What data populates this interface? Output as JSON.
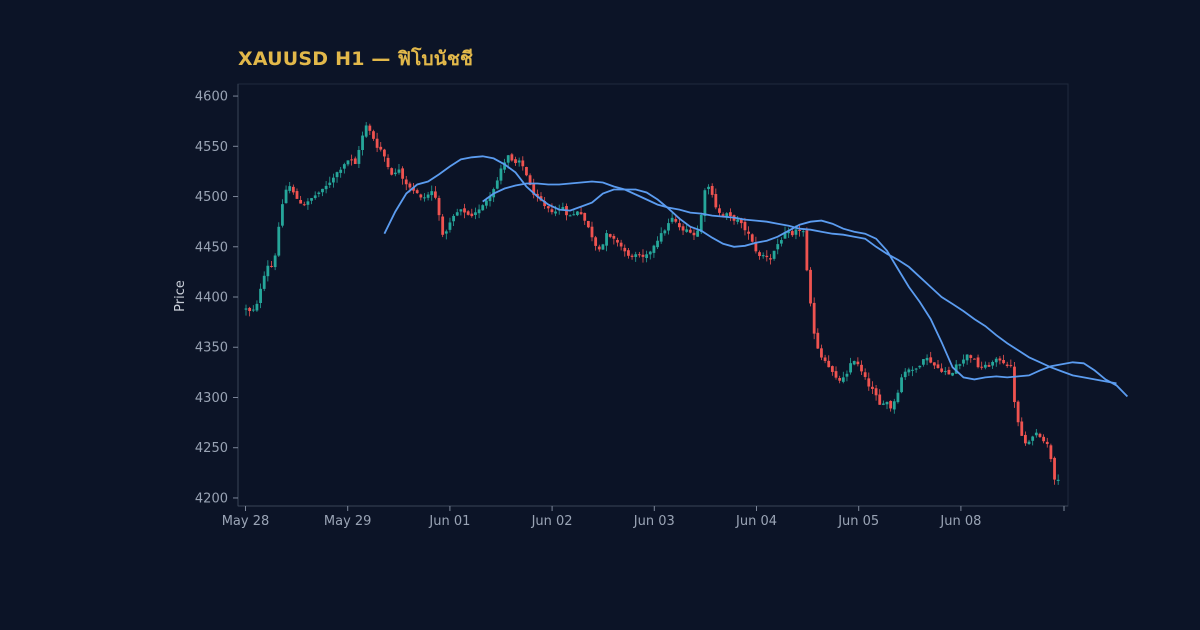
{
  "chart_data": {
    "type": "candlestick",
    "title": "XAUUSD H1 — ฟิโบนัชชี",
    "xlabel": "",
    "ylabel": "Price",
    "ylim": [
      4192,
      4612
    ],
    "y_ticks": [
      4200,
      4250,
      4300,
      4350,
      4400,
      4450,
      4500,
      4550,
      4600
    ],
    "x_ticks": [
      "May 28",
      "May 29",
      "Jun 01",
      "Jun 02",
      "Jun 03",
      "Jun 04",
      "Jun 05",
      "Jun 08"
    ],
    "grid": false,
    "colors": {
      "background": "#0c1427",
      "up": "#26a69a",
      "down": "#ef5350",
      "ma": "#5b9cf0",
      "title": "#e2b84a",
      "axis": "#2a3346"
    },
    "close_path": [
      [
        0,
        4388
      ],
      [
        3,
        4384
      ],
      [
        6,
        4392
      ],
      [
        9,
        4418
      ],
      [
        12,
        4432
      ],
      [
        15,
        4430
      ],
      [
        18,
        4468
      ],
      [
        21,
        4505
      ],
      [
        24,
        4510
      ],
      [
        27,
        4500
      ],
      [
        30,
        4494
      ],
      [
        33,
        4492
      ],
      [
        36,
        4498
      ],
      [
        39,
        4503
      ],
      [
        42,
        4506
      ],
      [
        45,
        4512
      ],
      [
        48,
        4520
      ],
      [
        51,
        4526
      ],
      [
        54,
        4533
      ],
      [
        57,
        4538
      ],
      [
        60,
        4532
      ],
      [
        63,
        4555
      ],
      [
        66,
        4570
      ],
      [
        69,
        4562
      ],
      [
        72,
        4550
      ],
      [
        75,
        4545
      ],
      [
        78,
        4530
      ],
      [
        81,
        4520
      ],
      [
        84,
        4528
      ],
      [
        87,
        4515
      ],
      [
        90,
        4510
      ],
      [
        93,
        4505
      ],
      [
        96,
        4498
      ],
      [
        99,
        4500
      ],
      [
        102,
        4505
      ],
      [
        105,
        4495
      ],
      [
        108,
        4460
      ],
      [
        111,
        4470
      ],
      [
        114,
        4480
      ],
      [
        117,
        4486
      ],
      [
        120,
        4485
      ],
      [
        123,
        4480
      ],
      [
        126,
        4485
      ],
      [
        129,
        4487
      ],
      [
        132,
        4497
      ],
      [
        135,
        4505
      ],
      [
        138,
        4516
      ],
      [
        141,
        4532
      ],
      [
        144,
        4540
      ],
      [
        147,
        4532
      ],
      [
        150,
        4534
      ],
      [
        153,
        4528
      ],
      [
        156,
        4510
      ],
      [
        159,
        4500
      ],
      [
        162,
        4494
      ],
      [
        165,
        4487
      ],
      [
        168,
        4486
      ],
      [
        171,
        4485
      ],
      [
        174,
        4490
      ],
      [
        177,
        4480
      ],
      [
        180,
        4482
      ],
      [
        183,
        4488
      ],
      [
        186,
        4476
      ],
      [
        189,
        4465
      ],
      [
        192,
        4452
      ],
      [
        195,
        4448
      ],
      [
        198,
        4462
      ],
      [
        201,
        4457
      ],
      [
        204,
        4455
      ],
      [
        207,
        4448
      ],
      [
        210,
        4440
      ],
      [
        213,
        4442
      ],
      [
        216,
        4440
      ],
      [
        219,
        4438
      ],
      [
        222,
        4446
      ],
      [
        225,
        4455
      ],
      [
        228,
        4462
      ],
      [
        231,
        4470
      ],
      [
        234,
        4478
      ],
      [
        237,
        4472
      ],
      [
        240,
        4465
      ],
      [
        243,
        4468
      ],
      [
        246,
        4462
      ],
      [
        249,
        4468
      ],
      [
        252,
        4508
      ],
      [
        255,
        4510
      ],
      [
        258,
        4490
      ],
      [
        261,
        4480
      ],
      [
        264,
        4482
      ],
      [
        267,
        4478
      ],
      [
        270,
        4476
      ],
      [
        273,
        4470
      ],
      [
        276,
        4462
      ],
      [
        279,
        4450
      ],
      [
        282,
        4440
      ],
      [
        285,
        4442
      ],
      [
        288,
        4438
      ],
      [
        291,
        4450
      ],
      [
        294,
        4458
      ],
      [
        297,
        4465
      ],
      [
        300,
        4460
      ],
      [
        303,
        4468
      ],
      [
        306,
        4465
      ],
      [
        309,
        4405
      ],
      [
        312,
        4365
      ],
      [
        315,
        4342
      ],
      [
        318,
        4338
      ],
      [
        321,
        4328
      ],
      [
        324,
        4318
      ],
      [
        327,
        4317
      ],
      [
        330,
        4322
      ],
      [
        333,
        4340
      ],
      [
        336,
        4332
      ],
      [
        339,
        4322
      ],
      [
        342,
        4312
      ],
      [
        345,
        4305
      ],
      [
        348,
        4292
      ],
      [
        351,
        4298
      ],
      [
        354,
        4290
      ],
      [
        357,
        4300
      ],
      [
        360,
        4320
      ],
      [
        363,
        4330
      ],
      [
        366,
        4326
      ],
      [
        369,
        4330
      ],
      [
        372,
        4340
      ],
      [
        375,
        4338
      ],
      [
        378,
        4332
      ],
      [
        381,
        4328
      ],
      [
        384,
        4326
      ],
      [
        387,
        4320
      ],
      [
        390,
        4333
      ],
      [
        393,
        4336
      ],
      [
        396,
        4342
      ],
      [
        399,
        4340
      ],
      [
        402,
        4331
      ],
      [
        405,
        4330
      ],
      [
        408,
        4332
      ],
      [
        411,
        4336
      ],
      [
        414,
        4338
      ],
      [
        417,
        4334
      ],
      [
        420,
        4330
      ],
      [
        423,
        4280
      ],
      [
        426,
        4262
      ],
      [
        429,
        4250
      ],
      [
        432,
        4263
      ],
      [
        435,
        4265
      ],
      [
        438,
        4258
      ],
      [
        441,
        4250
      ],
      [
        444,
        4220
      ]
    ],
    "ma_fast": [
      [
        76,
        4463
      ],
      [
        82,
        4485
      ],
      [
        88,
        4503
      ],
      [
        94,
        4512
      ],
      [
        100,
        4515
      ],
      [
        106,
        4522
      ],
      [
        112,
        4530
      ],
      [
        118,
        4537
      ],
      [
        124,
        4539
      ],
      [
        130,
        4540
      ],
      [
        136,
        4538
      ],
      [
        142,
        4532
      ],
      [
        148,
        4524
      ],
      [
        154,
        4510
      ],
      [
        160,
        4500
      ],
      [
        166,
        4492
      ],
      [
        172,
        4487
      ],
      [
        178,
        4486
      ],
      [
        184,
        4490
      ],
      [
        190,
        4494
      ],
      [
        196,
        4503
      ],
      [
        202,
        4507
      ],
      [
        208,
        4507
      ],
      [
        214,
        4507
      ],
      [
        220,
        4504
      ],
      [
        226,
        4497
      ],
      [
        232,
        4488
      ],
      [
        238,
        4478
      ],
      [
        244,
        4470
      ],
      [
        250,
        4466
      ],
      [
        256,
        4459
      ],
      [
        262,
        4453
      ],
      [
        268,
        4450
      ],
      [
        274,
        4451
      ],
      [
        280,
        4454
      ],
      [
        286,
        4456
      ],
      [
        292,
        4460
      ],
      [
        298,
        4466
      ],
      [
        304,
        4472
      ],
      [
        310,
        4475
      ],
      [
        316,
        4476
      ],
      [
        322,
        4473
      ],
      [
        328,
        4468
      ],
      [
        334,
        4465
      ],
      [
        340,
        4463
      ],
      [
        346,
        4458
      ],
      [
        352,
        4446
      ],
      [
        358,
        4428
      ],
      [
        364,
        4410
      ],
      [
        370,
        4395
      ],
      [
        376,
        4378
      ],
      [
        382,
        4355
      ],
      [
        388,
        4330
      ],
      [
        394,
        4320
      ],
      [
        400,
        4318
      ],
      [
        406,
        4320
      ],
      [
        412,
        4321
      ],
      [
        418,
        4320
      ],
      [
        424,
        4321
      ],
      [
        430,
        4322
      ],
      [
        436,
        4327
      ],
      [
        442,
        4331
      ],
      [
        448,
        4333
      ],
      [
        454,
        4335
      ],
      [
        460,
        4334
      ],
      [
        466,
        4327
      ],
      [
        472,
        4318
      ],
      [
        478,
        4312
      ],
      [
        484,
        4301
      ]
    ],
    "ma_slow": [
      [
        130,
        4495
      ],
      [
        136,
        4503
      ],
      [
        142,
        4508
      ],
      [
        148,
        4511
      ],
      [
        154,
        4513
      ],
      [
        160,
        4513
      ],
      [
        166,
        4512
      ],
      [
        172,
        4512
      ],
      [
        178,
        4513
      ],
      [
        184,
        4514
      ],
      [
        190,
        4515
      ],
      [
        196,
        4514
      ],
      [
        202,
        4510
      ],
      [
        208,
        4507
      ],
      [
        214,
        4502
      ],
      [
        220,
        4497
      ],
      [
        226,
        4492
      ],
      [
        232,
        4489
      ],
      [
        238,
        4487
      ],
      [
        244,
        4484
      ],
      [
        250,
        4483
      ],
      [
        256,
        4481
      ],
      [
        262,
        4480
      ],
      [
        268,
        4479
      ],
      [
        274,
        4477
      ],
      [
        280,
        4476
      ],
      [
        286,
        4475
      ],
      [
        292,
        4473
      ],
      [
        298,
        4471
      ],
      [
        304,
        4468
      ],
      [
        310,
        4467
      ],
      [
        316,
        4465
      ],
      [
        322,
        4463
      ],
      [
        328,
        4462
      ],
      [
        334,
        4460
      ],
      [
        340,
        4458
      ],
      [
        346,
        4450
      ],
      [
        352,
        4443
      ],
      [
        358,
        4437
      ],
      [
        364,
        4430
      ],
      [
        370,
        4420
      ],
      [
        376,
        4410
      ],
      [
        382,
        4400
      ],
      [
        388,
        4393
      ],
      [
        394,
        4386
      ],
      [
        400,
        4378
      ],
      [
        406,
        4371
      ],
      [
        412,
        4362
      ],
      [
        418,
        4354
      ],
      [
        424,
        4347
      ],
      [
        430,
        4340
      ],
      [
        436,
        4335
      ],
      [
        442,
        4330
      ],
      [
        448,
        4326
      ],
      [
        454,
        4322
      ],
      [
        460,
        4320
      ],
      [
        466,
        4318
      ],
      [
        472,
        4316
      ],
      [
        478,
        4314
      ]
    ],
    "n_bars": 448
  }
}
